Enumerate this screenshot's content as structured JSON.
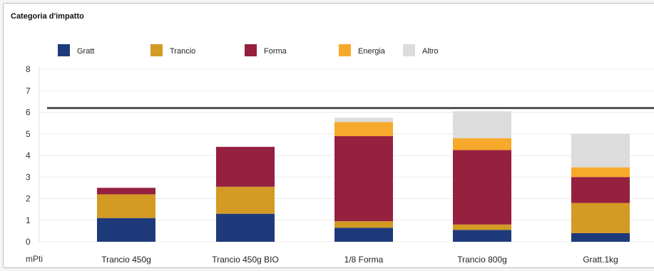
{
  "chart_data": {
    "type": "bar",
    "stacked": true,
    "title": "Categoria d'impatto",
    "unit_label": "mPti",
    "categories": [
      "Trancio 450g",
      "Trancio 450g BIO",
      "1/8 Forma",
      "Trancio 800g",
      "Gratt.1kg"
    ],
    "series": [
      {
        "name": "Gratt",
        "color": "#1f3a7a",
        "values": [
          1.1,
          1.3,
          0.65,
          0.55,
          0.4
        ]
      },
      {
        "name": "Trancio",
        "color": "#d39a24",
        "values": [
          1.1,
          1.25,
          0.3,
          0.25,
          1.4
        ]
      },
      {
        "name": "Forma",
        "color": "#952040",
        "values": [
          0.3,
          1.85,
          3.95,
          3.45,
          1.2
        ]
      },
      {
        "name": "Energia",
        "color": "#f6a92a",
        "values": [
          0.0,
          0.0,
          0.65,
          0.55,
          0.45
        ]
      },
      {
        "name": "Altro",
        "color": "#dcdcdc",
        "values": [
          0.0,
          0.0,
          0.2,
          1.25,
          1.55
        ]
      }
    ],
    "ylim": [
      0,
      8
    ],
    "yticks": [
      0,
      1,
      2,
      3,
      4,
      5,
      6,
      7,
      8
    ],
    "reference_line": 6.2,
    "grid": true,
    "legend_position": "top"
  }
}
